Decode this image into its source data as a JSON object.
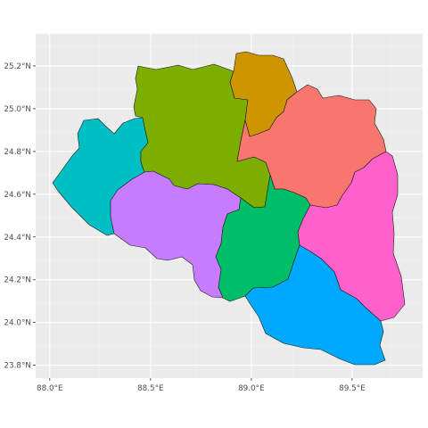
{
  "map": {
    "x_axis": {
      "min": 87.93,
      "max": 89.85,
      "ticks": [
        {
          "value": 88.0,
          "label": "88.0°E"
        },
        {
          "value": 88.5,
          "label": "88.5°E"
        },
        {
          "value": 89.0,
          "label": "89.0°E"
        },
        {
          "value": 89.5,
          "label": "89.5°E"
        }
      ]
    },
    "y_axis": {
      "min": 23.74,
      "max": 25.35,
      "ticks": [
        {
          "value": 23.8,
          "label": "23.8°N"
        },
        {
          "value": 24.0,
          "label": "24.0°N"
        },
        {
          "value": 24.2,
          "label": "24.2°N"
        },
        {
          "value": 24.4,
          "label": "24.4°N"
        },
        {
          "value": 24.6,
          "label": "24.6°N"
        },
        {
          "value": 24.8,
          "label": "24.8°N"
        },
        {
          "value": 25.0,
          "label": "25.0°N"
        },
        {
          "value": 25.2,
          "label": "25.2°N"
        }
      ]
    },
    "panel_color": "#ebebeb",
    "grid_color": "#ffffff",
    "border_color": "#1a1a1a",
    "regions": [
      {
        "color": "#00bfc4"
      },
      {
        "color": "#7cae00"
      },
      {
        "color": "#cd9600"
      },
      {
        "color": "#f8766d"
      },
      {
        "color": "#ff61cc"
      },
      {
        "color": "#c77cff"
      },
      {
        "color": "#00be67"
      },
      {
        "color": "#00a9ff"
      }
    ]
  }
}
